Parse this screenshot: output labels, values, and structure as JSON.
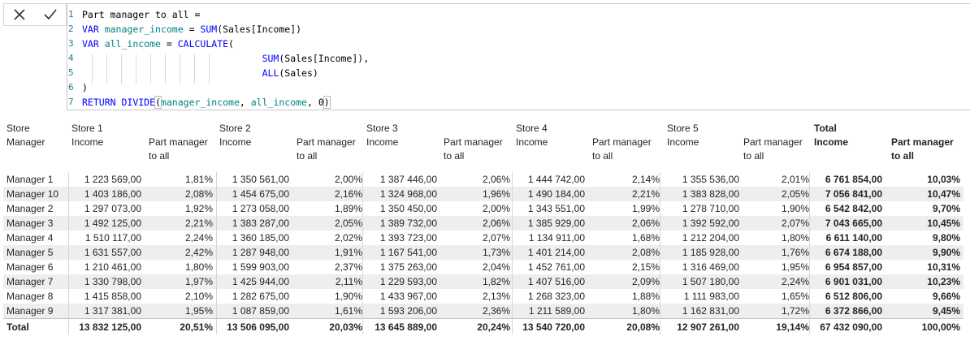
{
  "formula_bar": {
    "cancel_icon": "close-icon",
    "commit_icon": "checkmark-icon",
    "lines": [
      {
        "num": "1",
        "tokens": [
          {
            "t": "Part manager to all =",
            "c": "plain"
          }
        ]
      },
      {
        "num": "2",
        "tokens": [
          {
            "t": "VAR ",
            "c": "kw"
          },
          {
            "t": "manager_income",
            "c": "var"
          },
          {
            "t": " = ",
            "c": "plain"
          },
          {
            "t": "SUM",
            "c": "fn"
          },
          {
            "t": "(Sales[Income])",
            "c": "plain"
          }
        ]
      },
      {
        "num": "3",
        "tokens": [
          {
            "t": "VAR ",
            "c": "kw"
          },
          {
            "t": "all_income",
            "c": "var"
          },
          {
            "t": " = ",
            "c": "plain"
          },
          {
            "t": "CALCULATE",
            "c": "fn"
          },
          {
            "t": "(",
            "c": "plain"
          }
        ]
      },
      {
        "num": "4",
        "tokens": [
          {
            "t": "                                ",
            "c": "plain"
          },
          {
            "t": "SUM",
            "c": "fn"
          },
          {
            "t": "(Sales[Income]),",
            "c": "plain"
          }
        ]
      },
      {
        "num": "5",
        "tokens": [
          {
            "t": "                                ",
            "c": "plain"
          },
          {
            "t": "ALL",
            "c": "fn"
          },
          {
            "t": "(Sales)",
            "c": "plain"
          }
        ]
      },
      {
        "num": "6",
        "tokens": [
          {
            "t": ")",
            "c": "plain"
          }
        ]
      },
      {
        "num": "7",
        "tokens": [
          {
            "t": "RETURN ",
            "c": "kw"
          },
          {
            "t": "DIVIDE",
            "c": "fn"
          },
          {
            "t": "(",
            "c": "plain"
          },
          {
            "t": "manager_income",
            "c": "var"
          },
          {
            "t": ", ",
            "c": "plain"
          },
          {
            "t": "all_income",
            "c": "var"
          },
          {
            "t": ", ",
            "c": "plain"
          },
          {
            "t": "0",
            "c": "plain"
          },
          {
            "t": ")",
            "c": "plain"
          }
        ]
      }
    ]
  },
  "table": {
    "row_header": [
      "Store",
      "Manager"
    ],
    "stores": [
      {
        "name": "Store 1",
        "income": "Income",
        "part": [
          "Part manager",
          "to all"
        ]
      },
      {
        "name": "Store 2",
        "income": "Income",
        "part": [
          "Part manager",
          "to all"
        ]
      },
      {
        "name": "Store 3",
        "income": "Income",
        "part": [
          "Part manager",
          "to all"
        ]
      },
      {
        "name": "Store 4",
        "income": "Income",
        "part": [
          "Part manager",
          "to all"
        ]
      },
      {
        "name": "Store 5",
        "income": "Income",
        "part": [
          "Part manager",
          "to all"
        ]
      }
    ],
    "total_header": {
      "name": "Total",
      "income": "Income",
      "part": [
        "Part manager",
        "to all"
      ]
    },
    "rows": [
      {
        "manager": "Manager 1",
        "cells": [
          "1 223 569,00",
          "1,81%",
          "1 350 561,00",
          "2,00%",
          "1 387 446,00",
          "2,06%",
          "1 444 742,00",
          "2,14%",
          "1 355 536,00",
          "2,01%",
          "6 761 854,00",
          "10,03%"
        ]
      },
      {
        "manager": "Manager 10",
        "cells": [
          "1 403 186,00",
          "2,08%",
          "1 454 675,00",
          "2,16%",
          "1 324 968,00",
          "1,96%",
          "1 490 184,00",
          "2,21%",
          "1 383 828,00",
          "2,05%",
          "7 056 841,00",
          "10,47%"
        ]
      },
      {
        "manager": "Manager 2",
        "cells": [
          "1 297 073,00",
          "1,92%",
          "1 273 058,00",
          "1,89%",
          "1 350 450,00",
          "2,00%",
          "1 343 551,00",
          "1,99%",
          "1 278 710,00",
          "1,90%",
          "6 542 842,00",
          "9,70%"
        ]
      },
      {
        "manager": "Manager 3",
        "cells": [
          "1 492 125,00",
          "2,21%",
          "1 383 287,00",
          "2,05%",
          "1 389 732,00",
          "2,06%",
          "1 385 929,00",
          "2,06%",
          "1 392 592,00",
          "2,07%",
          "7 043 665,00",
          "10,45%"
        ]
      },
      {
        "manager": "Manager 4",
        "cells": [
          "1 510 117,00",
          "2,24%",
          "1 360 185,00",
          "2,02%",
          "1 393 723,00",
          "2,07%",
          "1 134 911,00",
          "1,68%",
          "1 212 204,00",
          "1,80%",
          "6 611 140,00",
          "9,80%"
        ]
      },
      {
        "manager": "Manager 5",
        "cells": [
          "1 631 557,00",
          "2,42%",
          "1 287 948,00",
          "1,91%",
          "1 167 541,00",
          "1,73%",
          "1 401 214,00",
          "2,08%",
          "1 185 928,00",
          "1,76%",
          "6 674 188,00",
          "9,90%"
        ]
      },
      {
        "manager": "Manager 6",
        "cells": [
          "1 210 461,00",
          "1,80%",
          "1 599 903,00",
          "2,37%",
          "1 375 263,00",
          "2,04%",
          "1 452 761,00",
          "2,15%",
          "1 316 469,00",
          "1,95%",
          "6 954 857,00",
          "10,31%"
        ]
      },
      {
        "manager": "Manager 7",
        "cells": [
          "1 330 798,00",
          "1,97%",
          "1 425 944,00",
          "2,11%",
          "1 229 593,00",
          "1,82%",
          "1 407 516,00",
          "2,09%",
          "1 507 180,00",
          "2,24%",
          "6 901 031,00",
          "10,23%"
        ]
      },
      {
        "manager": "Manager 8",
        "cells": [
          "1 415 858,00",
          "2,10%",
          "1 282 675,00",
          "1,90%",
          "1 433 967,00",
          "2,13%",
          "1 268 323,00",
          "1,88%",
          "1 111 983,00",
          "1,65%",
          "6 512 806,00",
          "9,66%"
        ]
      },
      {
        "manager": "Manager 9",
        "cells": [
          "1 317 381,00",
          "1,95%",
          "1 087 859,00",
          "1,61%",
          "1 593 206,00",
          "2,36%",
          "1 211 589,00",
          "1,80%",
          "1 162 831,00",
          "1,72%",
          "6 372 866,00",
          "9,45%"
        ]
      }
    ],
    "total_row": {
      "label": "Total",
      "cells": [
        "13 832 125,00",
        "20,51%",
        "13 506 095,00",
        "20,03%",
        "13 645 889,00",
        "20,24%",
        "13 540 720,00",
        "20,08%",
        "12 907 261,00",
        "19,14%",
        "67 432 090,00",
        "100,00%"
      ]
    }
  }
}
